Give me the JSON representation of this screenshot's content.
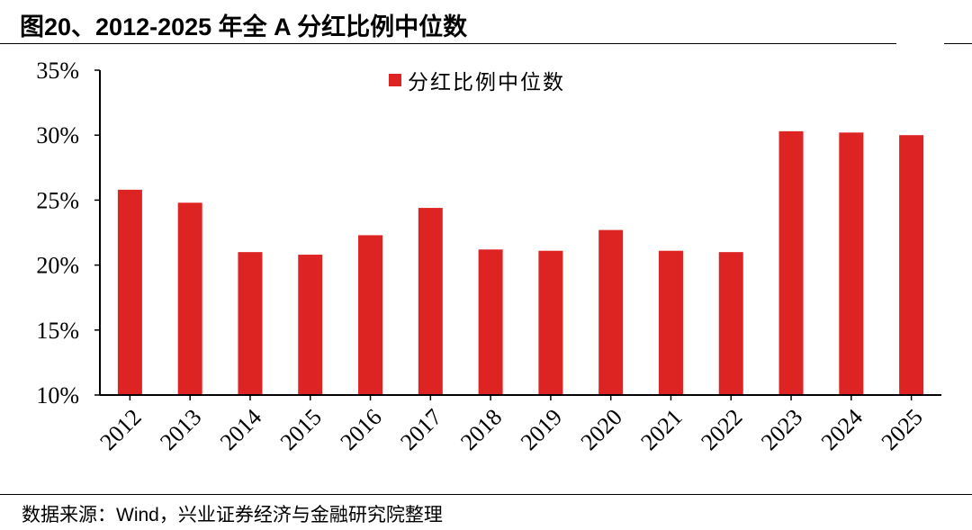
{
  "figure": {
    "title": "图20、2012-2025 年全 A 分红比例中位数",
    "source": "数据来源：Wind，兴业证券经济与金融研究院整理"
  },
  "colors": {
    "bar": "#de2423",
    "axis": "#000000"
  },
  "chart_data": {
    "type": "bar",
    "title": "",
    "xlabel": "",
    "ylabel": "",
    "categories": [
      "2012",
      "2013",
      "2014",
      "2015",
      "2016",
      "2017",
      "2018",
      "2019",
      "2020",
      "2021",
      "2022",
      "2023",
      "2024",
      "2025"
    ],
    "series": [
      {
        "name": "分红比例中位数",
        "values": [
          25.8,
          24.8,
          21.0,
          20.8,
          22.3,
          24.4,
          21.2,
          21.1,
          22.7,
          21.1,
          21.0,
          30.3,
          30.2,
          30.0
        ]
      }
    ],
    "ylim": [
      10,
      35
    ],
    "yticks": [
      10,
      15,
      20,
      25,
      30,
      35
    ],
    "ytick_labels": [
      "10%",
      "15%",
      "20%",
      "25%",
      "30%",
      "35%"
    ],
    "grid": false,
    "legend_position": "top-center"
  }
}
